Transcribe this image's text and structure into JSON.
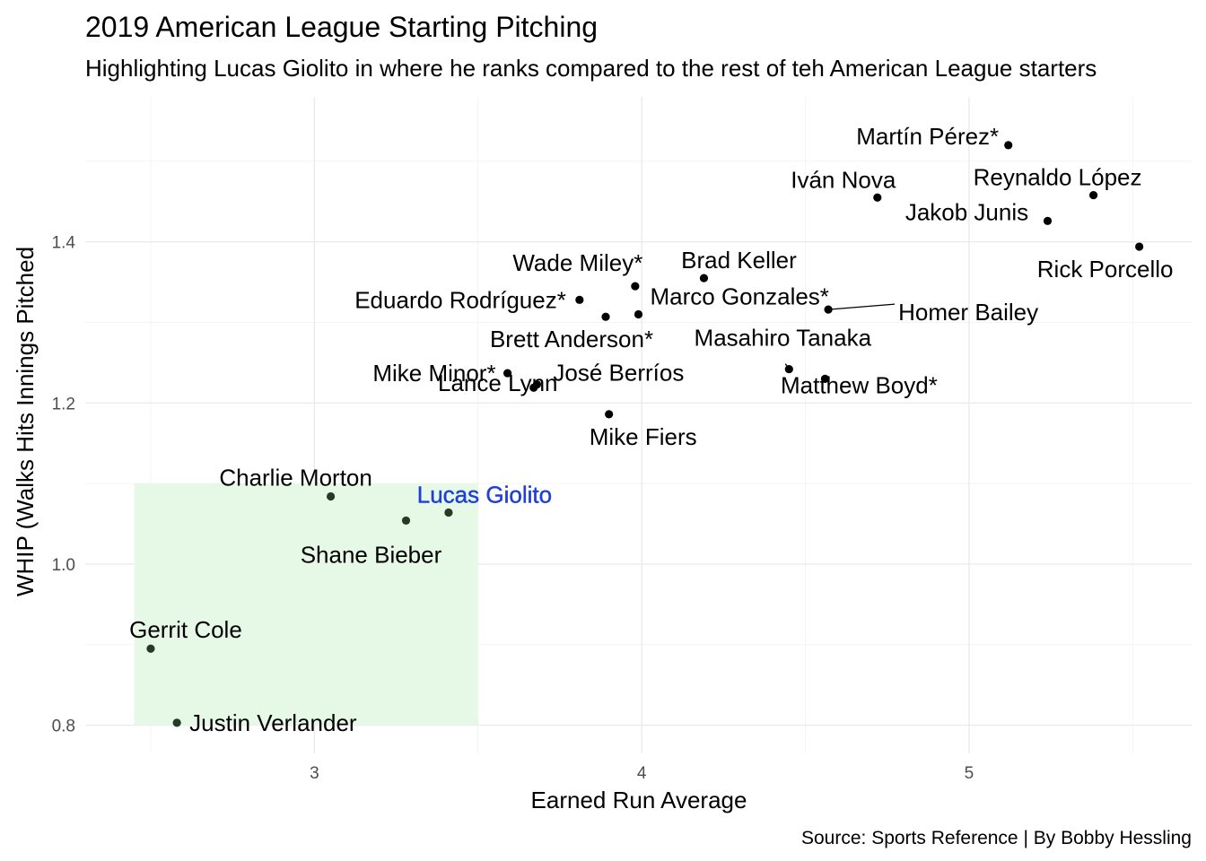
{
  "chart_data": {
    "type": "scatter",
    "title": "2019 American League Starting Pitching",
    "subtitle": "Highlighting Lucas Giolito in where he ranks compared to the rest of teh American League starters",
    "xlabel": "Earned Run Average",
    "ylabel": "WHIP (Walks Hits Innings Pitched",
    "caption": "Source: Sports Reference | By Bobby Hessling",
    "xlim": [
      2.3,
      5.68
    ],
    "ylim": [
      0.765,
      1.58
    ],
    "x_ticks": [
      3,
      4,
      5
    ],
    "y_ticks": [
      0.8,
      1.0,
      1.2,
      1.4
    ],
    "y_tick_labels": [
      "0.8",
      "1.0",
      "1.2",
      "1.4"
    ],
    "grid": true,
    "highlight_region": {
      "x": [
        2.45,
        3.5
      ],
      "y": [
        0.8,
        1.1
      ],
      "color": "#e6f8e6"
    },
    "highlight_point_color": "#243b24",
    "highlight_label_color": "#1f3fd6",
    "highlight_name": "Lucas Giolito",
    "points": [
      {
        "name": "Martín Pérez*",
        "x": 5.12,
        "y": 1.52
      },
      {
        "name": "Iván Nova",
        "x": 4.72,
        "y": 1.455
      },
      {
        "name": "Reynaldo López",
        "x": 5.38,
        "y": 1.458
      },
      {
        "name": "Jakob Junis",
        "x": 5.24,
        "y": 1.426
      },
      {
        "name": "Rick Porcello",
        "x": 5.52,
        "y": 1.394
      },
      {
        "name": "Wade Miley*",
        "x": 3.98,
        "y": 1.345
      },
      {
        "name": "Brad Keller",
        "x": 4.19,
        "y": 1.355
      },
      {
        "name": "Eduardo Rodríguez*",
        "x": 3.81,
        "y": 1.328
      },
      {
        "name": "Brett Anderson*",
        "x": 3.89,
        "y": 1.307
      },
      {
        "name": "Marco Gonzales*",
        "x": 3.99,
        "y": 1.31
      },
      {
        "name": "Homer Bailey",
        "x": 4.57,
        "y": 1.316
      },
      {
        "name": "Masahiro Tanaka",
        "x": 4.45,
        "y": 1.242
      },
      {
        "name": "Matthew Boyd*",
        "x": 4.56,
        "y": 1.23
      },
      {
        "name": "Mike Minor*",
        "x": 3.59,
        "y": 1.237
      },
      {
        "name": "José Berríos",
        "x": 3.68,
        "y": 1.223
      },
      {
        "name": "Lance Lynn",
        "x": 3.67,
        "y": 1.219
      },
      {
        "name": "Mike Fiers",
        "x": 3.9,
        "y": 1.186
      },
      {
        "name": "Charlie Morton",
        "x": 3.05,
        "y": 1.084
      },
      {
        "name": "Shane Bieber",
        "x": 3.28,
        "y": 1.054
      },
      {
        "name": "Lucas Giolito",
        "x": 3.41,
        "y": 1.064
      },
      {
        "name": "Gerrit Cole",
        "x": 2.5,
        "y": 0.895
      },
      {
        "name": "Justin Verlander",
        "x": 2.58,
        "y": 0.803
      }
    ]
  }
}
